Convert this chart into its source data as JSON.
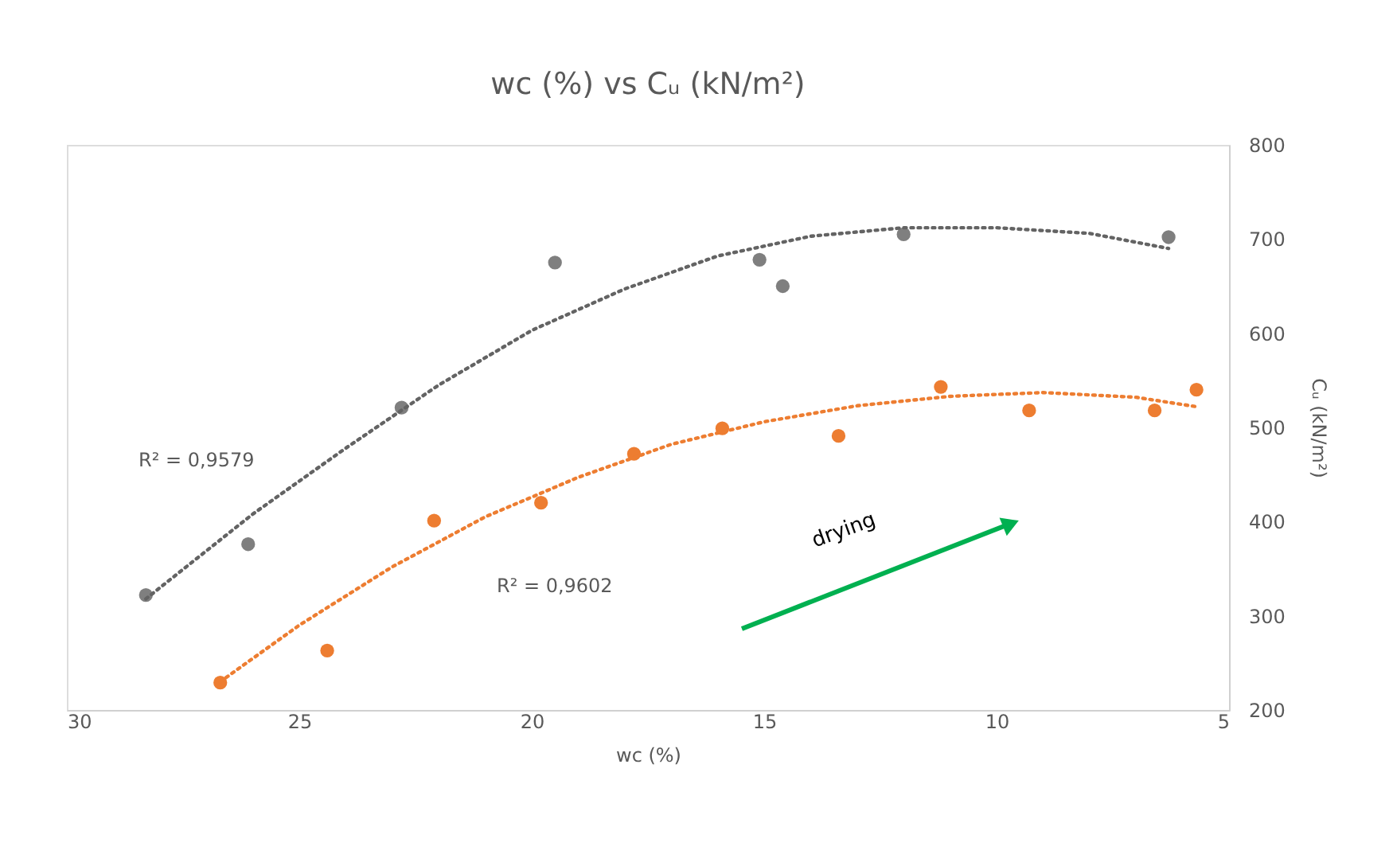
{
  "chart_data": {
    "type": "scatter",
    "title": "wc (%) vs Cᵤ (kN/m²)",
    "xlabel": "wc (%)",
    "y2label": "Cᵤ (kN/m²)",
    "xlim": [
      30,
      5
    ],
    "xticks": [
      30,
      25,
      20,
      15,
      10,
      5
    ],
    "y2lim": [
      200,
      800
    ],
    "y2ticks": [
      200,
      300,
      400,
      500,
      600,
      700,
      800
    ],
    "grid": false,
    "marker": "circle",
    "annotations": [
      "R² = 0,9579",
      "R² = 0,9602",
      "drying"
    ],
    "series": [
      {
        "axis": "y2",
        "color": "#7f7f7f",
        "x": [
          28.3,
          26.1,
          22.8,
          19.5,
          15.1,
          14.6,
          12.0,
          6.3
        ],
        "values": [
          322,
          376,
          521,
          675,
          678,
          650,
          705,
          702
        ]
      },
      {
        "axis": "y2",
        "color": "#ed7d31",
        "x": [
          26.7,
          24.4,
          22.1,
          19.8,
          17.8,
          15.9,
          13.4,
          11.2,
          9.3,
          6.6,
          5.7
        ],
        "values": [
          229,
          263,
          401,
          420,
          472,
          499,
          491,
          543,
          518,
          518,
          540
        ]
      },
      {
        "type": "line",
        "axis": "y2",
        "line_style": "dotted",
        "marker": "none",
        "color": "#636363",
        "x": [
          28.3,
          26,
          24,
          22,
          20,
          18,
          16,
          14,
          12,
          10,
          8,
          6.3
        ],
        "values": [
          318,
          408,
          478,
          545,
          603,
          647,
          682,
          703,
          712,
          712,
          706,
          690
        ]
      },
      {
        "type": "line",
        "axis": "y2",
        "line_style": "dotted",
        "marker": "none",
        "color": "#ed7d31",
        "x": [
          26.7,
          25,
          23,
          21,
          19,
          17,
          15,
          13,
          11,
          9,
          7,
          5.7
        ],
        "values": [
          230,
          290,
          352,
          405,
          447,
          482,
          506,
          523,
          533,
          537,
          532,
          522
        ]
      }
    ]
  }
}
